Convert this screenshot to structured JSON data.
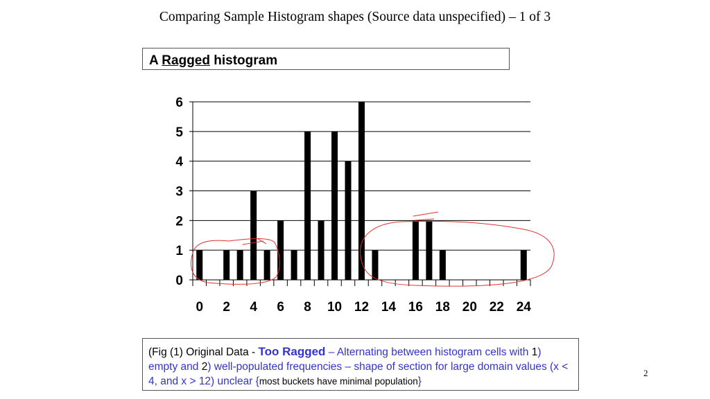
{
  "slide": {
    "title": "Comparing Sample Histogram shapes (Source data unspecified) – 1 of 3",
    "page_number": "2"
  },
  "subtitle": {
    "prefix": "A ",
    "underlined": "Ragged",
    "suffix": " histogram"
  },
  "caption": {
    "part1": "(Fig (1) Original Data - ",
    "bold": "Too Ragged",
    "part2": " – Alternating between histogram cells with ",
    "n1": "1",
    "part3": ") empty and ",
    "n2": "2",
    "part4": ") well-populated frequencies – shape of section for large domain values (x < 4, and x > 12) unclear ",
    "brace_open": "{",
    "small": "most buckets have minimal population",
    "brace_close": "}"
  },
  "annotation_color": "#e03030",
  "chart_data": {
    "type": "bar",
    "x": [
      0,
      1,
      2,
      3,
      4,
      5,
      6,
      7,
      8,
      9,
      10,
      11,
      12,
      13,
      14,
      15,
      16,
      17,
      18,
      19,
      20,
      21,
      22,
      23,
      24
    ],
    "values": [
      1,
      0,
      1,
      1,
      3,
      1,
      2,
      1,
      5,
      2,
      5,
      4,
      6,
      1,
      0,
      0,
      2,
      2,
      1,
      0,
      0,
      0,
      0,
      0,
      1
    ],
    "x_tick_labels": [
      "0",
      "2",
      "4",
      "6",
      "8",
      "10",
      "12",
      "14",
      "16",
      "18",
      "20",
      "22",
      "24"
    ],
    "y_tick_labels": [
      "0",
      "1",
      "2",
      "3",
      "4",
      "5",
      "6"
    ],
    "ylim": [
      0,
      6
    ],
    "title": "",
    "xlabel": "",
    "ylabel": "",
    "grid": "horizontal",
    "bar_color": "#000000"
  }
}
